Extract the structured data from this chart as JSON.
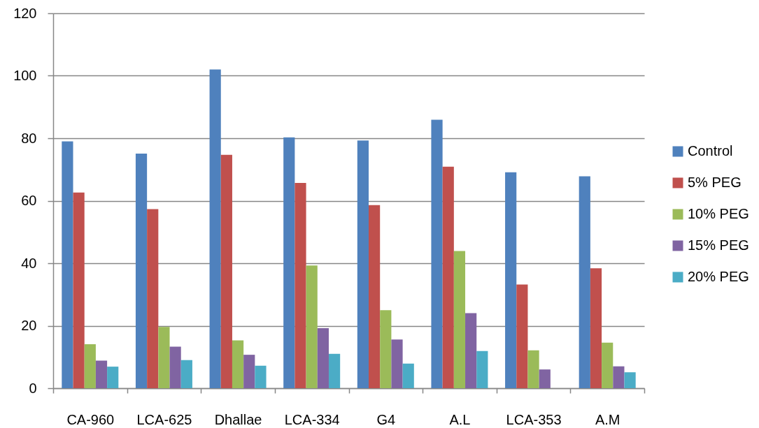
{
  "chart_data": {
    "type": "bar",
    "categories": [
      "CA-960",
      "LCA-625",
      "Dhallae",
      "LCA-334",
      "G4",
      "A.L",
      "LCA-353",
      "A.M"
    ],
    "series": [
      {
        "name": "Control",
        "color": "#4f81bd",
        "values": [
          79.0,
          75.1,
          102.0,
          80.3,
          79.3,
          85.9,
          69.1,
          67.8
        ]
      },
      {
        "name": "5% PEG",
        "color": "#c0504d",
        "values": [
          62.6,
          57.3,
          74.7,
          65.7,
          58.6,
          70.9,
          33.2,
          38.4
        ]
      },
      {
        "name": "10% PEG",
        "color": "#9bbb59",
        "values": [
          14.1,
          19.6,
          15.3,
          39.3,
          25.0,
          43.9,
          12.1,
          14.6
        ]
      },
      {
        "name": "15% PEG",
        "color": "#8064a2",
        "values": [
          8.8,
          13.3,
          10.7,
          19.2,
          15.6,
          24.0,
          6.0,
          7.0
        ]
      },
      {
        "name": "20% PEG",
        "color": "#4bacc6",
        "values": [
          6.9,
          9.0,
          7.2,
          11.0,
          7.9,
          11.9,
          null,
          5.1
        ]
      }
    ],
    "ylim": [
      0,
      120
    ],
    "yticks": [
      0,
      20,
      40,
      60,
      80,
      100,
      120
    ],
    "grid": "y",
    "legend": "right"
  }
}
